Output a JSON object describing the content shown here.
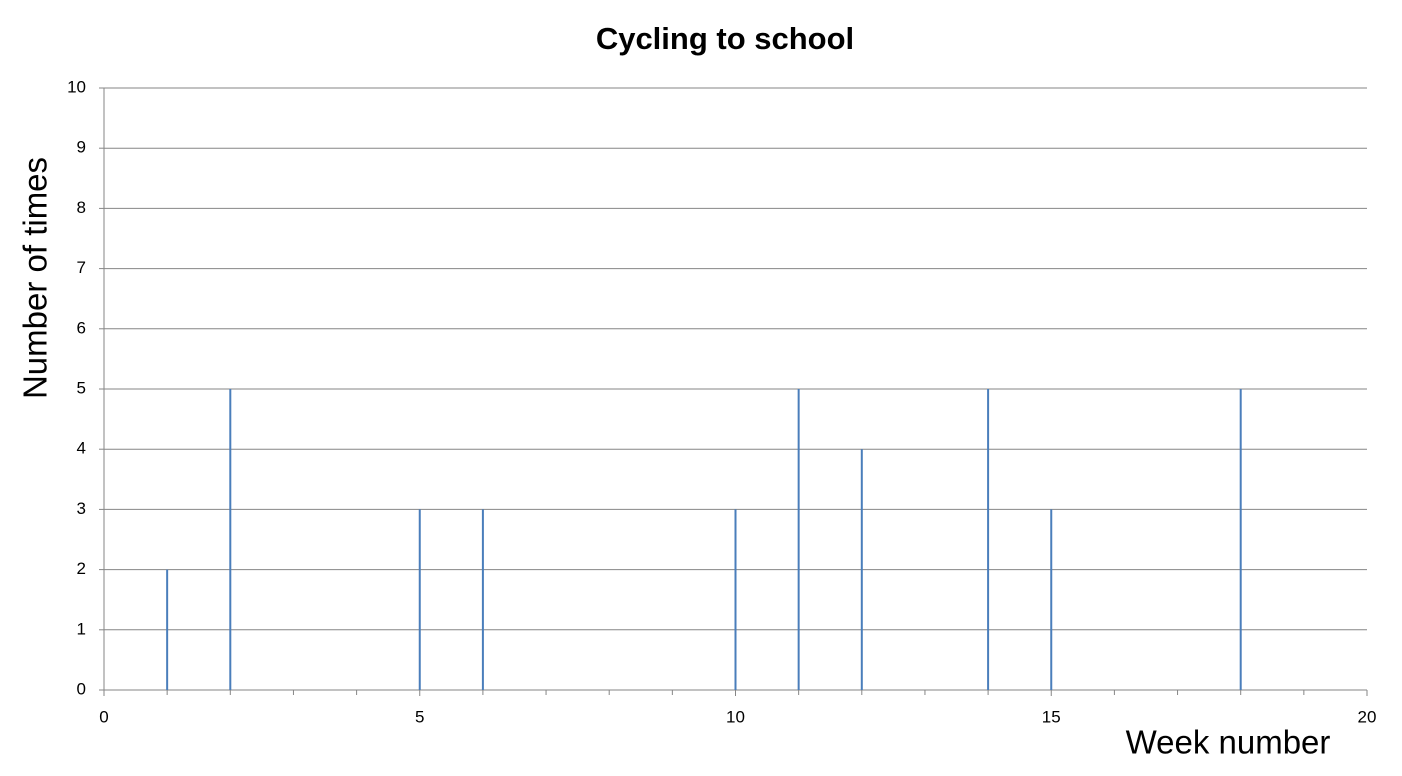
{
  "chart_data": {
    "type": "stem",
    "title": "Cycling to school",
    "x_label": "Week number",
    "y_label": "Number of times",
    "x": [
      1,
      2,
      5,
      6,
      10,
      11,
      12,
      14,
      15,
      18
    ],
    "values": [
      2,
      5,
      3,
      3,
      3,
      5,
      4,
      5,
      3,
      5
    ],
    "color": "#4a7ebb",
    "xlim": [
      0,
      20
    ],
    "xticks": [
      0,
      5,
      10,
      15,
      20
    ],
    "xminor_ticks": [
      1,
      2,
      3,
      4,
      6,
      7,
      8,
      9,
      11,
      12,
      13,
      14,
      16,
      17,
      18,
      19
    ],
    "ylim": [
      0,
      10
    ],
    "yticks": [
      0,
      1,
      2,
      3,
      4,
      5,
      6,
      7,
      8,
      9,
      10
    ],
    "grid": true
  }
}
